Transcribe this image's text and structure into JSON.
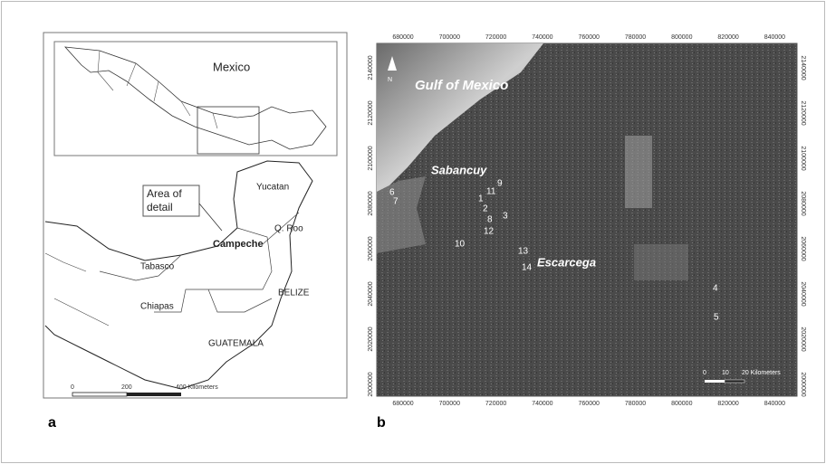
{
  "panel_a": {
    "label": "a",
    "inset_title": "Mexico",
    "regions": [
      "Yucatan",
      "Q. Roo",
      "Campeche",
      "Tabasco",
      "Chiapas",
      "BELIZE",
      "GUATEMALA"
    ],
    "area_label": [
      "Area of",
      "detail"
    ],
    "scale": [
      "0",
      "200",
      "400 Kilometers"
    ]
  },
  "panel_b": {
    "label": "b",
    "north": "N",
    "x_ticks": [
      680000,
      700000,
      720000,
      740000,
      760000,
      780000,
      800000,
      820000,
      840000
    ],
    "y_ticks": [
      2140000,
      2120000,
      2100000,
      2080000,
      2060000,
      2040000,
      2020000,
      2000000
    ],
    "places": [
      "Gulf of Mexico",
      "Sabancuy",
      "Escarcega"
    ],
    "sites": [
      "6",
      "7",
      "11",
      "9",
      "1",
      "2",
      "3",
      "8",
      "12",
      "10",
      "13",
      "14",
      "4",
      "5"
    ],
    "scale": [
      "0",
      "10",
      "20 Kilometers"
    ]
  }
}
